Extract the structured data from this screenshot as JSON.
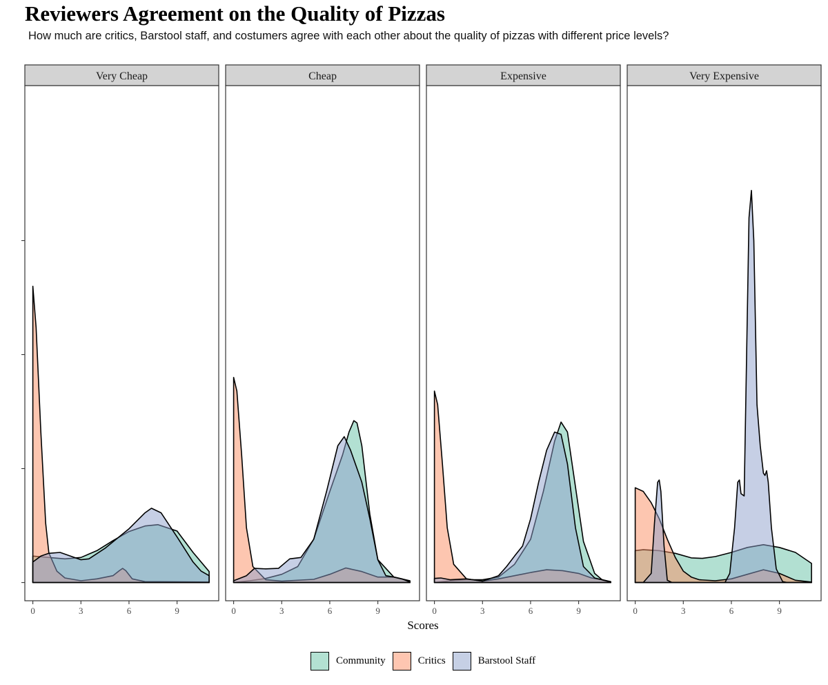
{
  "title": "Reviewers Agreement on the Quality of Pizzas",
  "subtitle": "How much are critics, Barstool staff, and costumers agree with each other about the quality of pizzas with different price levels?",
  "chart_data": {
    "type": "area",
    "subtype": "density",
    "xlabel": "Scores",
    "ylabel": "",
    "xlim": [
      -0.5,
      11.6
    ],
    "ylim": [
      -0.04,
      1.09
    ],
    "x_ticks": [
      "0",
      "3",
      "6",
      "9"
    ],
    "y_ticks": [
      0,
      0.25,
      0.5,
      0.75
    ],
    "y_tick_labels_shown": false,
    "legend_position": "bottom",
    "series_order": [
      "Community",
      "Critics",
      "Barstool Staff"
    ],
    "colors": {
      "Community": "#66C2A5",
      "Critics": "#FC8D62",
      "Barstool Staff": "#8DA0CB"
    },
    "fill_opacity": 0.5,
    "panels": [
      {
        "name": "Very Cheap",
        "series": [
          {
            "name": "Community",
            "points": [
              [
                0,
                0.058
              ],
              [
                1,
                0.055
              ],
              [
                2,
                0.052
              ],
              [
                3,
                0.055
              ],
              [
                4,
                0.07
              ],
              [
                5,
                0.092
              ],
              [
                6,
                0.112
              ],
              [
                7,
                0.124
              ],
              [
                7.8,
                0.127
              ],
              [
                9,
                0.113
              ],
              [
                10,
                0.066
              ],
              [
                11,
                0.024
              ]
            ]
          },
          {
            "name": "Critics",
            "points": [
              [
                0,
                0.65
              ],
              [
                0.2,
                0.56
              ],
              [
                0.5,
                0.33
              ],
              [
                0.8,
                0.13
              ],
              [
                1,
                0.065
              ],
              [
                1.5,
                0.025
              ],
              [
                2,
                0.01
              ],
              [
                3,
                0.004
              ],
              [
                4,
                0.008
              ],
              [
                5,
                0.015
              ],
              [
                5.4,
                0.026
              ],
              [
                5.6,
                0.031
              ],
              [
                5.8,
                0.026
              ],
              [
                6.2,
                0.008
              ],
              [
                7,
                0.002
              ],
              [
                11,
                0.001
              ]
            ]
          },
          {
            "name": "Barstool Staff",
            "points": [
              [
                0,
                0.045
              ],
              [
                0.5,
                0.058
              ],
              [
                1,
                0.064
              ],
              [
                1.7,
                0.066
              ],
              [
                3,
                0.05
              ],
              [
                3.5,
                0.052
              ],
              [
                4.5,
                0.075
              ],
              [
                6,
                0.118
              ],
              [
                7,
                0.153
              ],
              [
                7.4,
                0.163
              ],
              [
                8,
                0.153
              ],
              [
                9,
                0.1
              ],
              [
                10,
                0.045
              ],
              [
                10.5,
                0.025
              ],
              [
                11,
                0.015
              ]
            ]
          }
        ]
      },
      {
        "name": "Cheap",
        "series": [
          {
            "name": "Community",
            "points": [
              [
                0,
                0
              ],
              [
                1,
                0.004
              ],
              [
                2,
                0.009
              ],
              [
                3,
                0.018
              ],
              [
                4,
                0.035
              ],
              [
                5,
                0.095
              ],
              [
                6,
                0.2
              ],
              [
                6.8,
                0.28
              ],
              [
                7.2,
                0.33
              ],
              [
                7.5,
                0.355
              ],
              [
                7.7,
                0.35
              ],
              [
                8,
                0.3
              ],
              [
                8.5,
                0.15
              ],
              [
                9,
                0.05
              ],
              [
                10,
                0.012
              ],
              [
                11,
                0.004
              ]
            ]
          },
          {
            "name": "Critics",
            "points": [
              [
                0,
                0.45
              ],
              [
                0.2,
                0.42
              ],
              [
                0.5,
                0.28
              ],
              [
                0.8,
                0.12
              ],
              [
                1.2,
                0.035
              ],
              [
                2,
                0.006
              ],
              [
                3,
                0.003
              ],
              [
                5,
                0.007
              ],
              [
                6,
                0.018
              ],
              [
                7,
                0.032
              ],
              [
                8,
                0.024
              ],
              [
                9,
                0.012
              ],
              [
                10,
                0.012
              ],
              [
                11,
                0.003
              ]
            ]
          },
          {
            "name": "Barstool Staff",
            "points": [
              [
                0,
                0.004
              ],
              [
                0.8,
                0.015
              ],
              [
                1.3,
                0.031
              ],
              [
                2,
                0.03
              ],
              [
                2.8,
                0.031
              ],
              [
                3.5,
                0.052
              ],
              [
                4.2,
                0.055
              ],
              [
                5,
                0.095
              ],
              [
                5.8,
                0.2
              ],
              [
                6.5,
                0.3
              ],
              [
                6.9,
                0.32
              ],
              [
                7.3,
                0.29
              ],
              [
                8,
                0.22
              ],
              [
                8.5,
                0.14
              ],
              [
                9,
                0.05
              ],
              [
                9.5,
                0.015
              ],
              [
                10,
                0.012
              ],
              [
                10.5,
                0.008
              ],
              [
                11,
                0.001
              ]
            ]
          }
        ]
      },
      {
        "name": "Expensive",
        "series": [
          {
            "name": "Community",
            "points": [
              [
                0,
                0
              ],
              [
                1,
                0.004
              ],
              [
                2,
                0.006
              ],
              [
                3,
                0.006
              ],
              [
                4,
                0.012
              ],
              [
                5,
                0.04
              ],
              [
                6,
                0.095
              ],
              [
                6.8,
                0.2
              ],
              [
                7.5,
                0.31
              ],
              [
                7.9,
                0.352
              ],
              [
                8.3,
                0.33
              ],
              [
                8.8,
                0.21
              ],
              [
                9.3,
                0.09
              ],
              [
                10,
                0.02
              ],
              [
                10.5,
                0.005
              ],
              [
                11,
                0.001
              ]
            ]
          },
          {
            "name": "Critics",
            "points": [
              [
                0,
                0.42
              ],
              [
                0.2,
                0.39
              ],
              [
                0.5,
                0.26
              ],
              [
                0.8,
                0.12
              ],
              [
                1.2,
                0.04
              ],
              [
                2,
                0.008
              ],
              [
                3,
                0.003
              ],
              [
                4,
                0.008
              ],
              [
                5,
                0.015
              ],
              [
                6,
                0.022
              ],
              [
                7,
                0.028
              ],
              [
                8,
                0.026
              ],
              [
                9,
                0.02
              ],
              [
                9.8,
                0.01
              ],
              [
                10.5,
                0.006
              ],
              [
                11,
                0.002
              ]
            ]
          },
          {
            "name": "Barstool Staff",
            "points": [
              [
                0,
                0.009
              ],
              [
                0.4,
                0.01
              ],
              [
                1,
                0.006
              ],
              [
                2,
                0.008
              ],
              [
                3,
                0.003
              ],
              [
                4,
                0.015
              ],
              [
                4.5,
                0.035
              ],
              [
                5,
                0.058
              ],
              [
                5.5,
                0.08
              ],
              [
                6,
                0.14
              ],
              [
                6.5,
                0.22
              ],
              [
                7,
                0.29
              ],
              [
                7.5,
                0.33
              ],
              [
                7.9,
                0.325
              ],
              [
                8.3,
                0.26
              ],
              [
                8.8,
                0.12
              ],
              [
                9.3,
                0.035
              ],
              [
                10,
                0.01
              ],
              [
                11,
                0.001
              ]
            ]
          }
        ]
      },
      {
        "name": "Very Expensive",
        "series": [
          {
            "name": "Community",
            "points": [
              [
                0,
                0.07
              ],
              [
                0.5,
                0.072
              ],
              [
                1.5,
                0.07
              ],
              [
                2.5,
                0.064
              ],
              [
                3.5,
                0.054
              ],
              [
                4.2,
                0.053
              ],
              [
                5,
                0.057
              ],
              [
                6,
                0.066
              ],
              [
                7,
                0.077
              ],
              [
                8,
                0.083
              ],
              [
                9,
                0.077
              ],
              [
                10,
                0.066
              ],
              [
                11,
                0.042
              ]
            ]
          },
          {
            "name": "Critics",
            "points": [
              [
                0,
                0.208
              ],
              [
                0.5,
                0.2
              ],
              [
                1,
                0.175
              ],
              [
                1.5,
                0.14
              ],
              [
                2,
                0.095
              ],
              [
                2.5,
                0.055
              ],
              [
                3,
                0.025
              ],
              [
                3.5,
                0.012
              ],
              [
                4,
                0.006
              ],
              [
                5,
                0.004
              ],
              [
                6,
                0.008
              ],
              [
                7,
                0.018
              ],
              [
                8,
                0.028
              ],
              [
                9,
                0.02
              ],
              [
                10,
                0.005
              ],
              [
                11,
                0.001
              ]
            ]
          },
          {
            "name": "Barstool Staff",
            "points": [
              [
                0,
                0
              ],
              [
                0.5,
                0
              ],
              [
                1,
                0.02
              ],
              [
                1.2,
                0.13
              ],
              [
                1.4,
                0.22
              ],
              [
                1.5,
                0.225
              ],
              [
                1.6,
                0.2
              ],
              [
                1.8,
                0.08
              ],
              [
                2,
                0.005
              ],
              [
                2.3,
                0
              ],
              [
                5.6,
                0
              ],
              [
                5.9,
                0.02
              ],
              [
                6.2,
                0.12
              ],
              [
                6.4,
                0.22
              ],
              [
                6.5,
                0.225
              ],
              [
                6.6,
                0.195
              ],
              [
                6.8,
                0.19
              ],
              [
                7,
                0.6
              ],
              [
                7.1,
                0.8
              ],
              [
                7.25,
                0.86
              ],
              [
                7.4,
                0.75
              ],
              [
                7.6,
                0.39
              ],
              [
                7.8,
                0.3
              ],
              [
                8,
                0.24
              ],
              [
                8.1,
                0.235
              ],
              [
                8.2,
                0.245
              ],
              [
                8.3,
                0.22
              ],
              [
                8.5,
                0.12
              ],
              [
                8.8,
                0.03
              ],
              [
                9.2,
                0.002
              ],
              [
                9.5,
                0
              ],
              [
                11,
                0
              ]
            ]
          }
        ]
      }
    ]
  }
}
